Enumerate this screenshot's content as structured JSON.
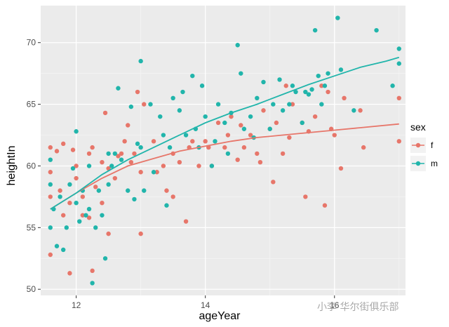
{
  "chart_data": {
    "type": "scatter",
    "title": "",
    "xlabel": "ageYear",
    "ylabel": "heightIn",
    "xlim": [
      11.45,
      17.1
    ],
    "ylim": [
      49.5,
      73.0
    ],
    "x_ticks": [
      12,
      14,
      16
    ],
    "x_tick_labels": [
      "12",
      "14",
      "16"
    ],
    "y_ticks": [
      50,
      55,
      60,
      65,
      70
    ],
    "y_tick_labels": [
      "50",
      "55",
      "60",
      "65",
      "70"
    ],
    "grid": true,
    "legend": {
      "title": "sex",
      "position": "right"
    },
    "series": [
      {
        "name": "f",
        "color": "#E7766A",
        "points": [
          [
            11.6,
            52.8
          ],
          [
            11.6,
            57.5
          ],
          [
            11.6,
            59.5
          ],
          [
            11.6,
            61.5
          ],
          [
            11.7,
            61.2
          ],
          [
            11.75,
            58.0
          ],
          [
            11.8,
            61.8
          ],
          [
            11.8,
            56.0
          ],
          [
            11.9,
            57.0
          ],
          [
            11.9,
            51.3
          ],
          [
            11.95,
            61.3
          ],
          [
            12.0,
            60.0
          ],
          [
            12.0,
            59.0
          ],
          [
            12.1,
            57.5
          ],
          [
            12.1,
            56.0
          ],
          [
            12.2,
            61.0
          ],
          [
            12.25,
            61.5
          ],
          [
            12.2,
            55.8
          ],
          [
            12.25,
            51.5
          ],
          [
            12.3,
            58.3
          ],
          [
            12.4,
            57.0
          ],
          [
            12.4,
            60.3
          ],
          [
            12.45,
            64.3
          ],
          [
            12.5,
            59.8
          ],
          [
            12.5,
            54.5
          ],
          [
            12.6,
            59.0
          ],
          [
            12.65,
            60.8
          ],
          [
            12.7,
            61.0
          ],
          [
            12.75,
            62.0
          ],
          [
            12.8,
            63.3
          ],
          [
            12.85,
            60.3
          ],
          [
            12.9,
            61.0
          ],
          [
            12.95,
            66.0
          ],
          [
            13.0,
            54.5
          ],
          [
            13.0,
            59.5
          ],
          [
            13.05,
            65.0
          ],
          [
            13.2,
            62.0
          ],
          [
            13.25,
            59.5
          ],
          [
            13.35,
            60.0
          ],
          [
            13.4,
            58.0
          ],
          [
            13.5,
            61.0
          ],
          [
            13.5,
            57.5
          ],
          [
            13.6,
            60.3
          ],
          [
            13.7,
            55.5
          ],
          [
            13.75,
            61.5
          ],
          [
            13.8,
            62.0
          ],
          [
            13.9,
            60.0
          ],
          [
            14.0,
            62.0
          ],
          [
            14.05,
            61.5
          ],
          [
            14.1,
            60.0
          ],
          [
            14.2,
            63.5
          ],
          [
            14.3,
            61.5
          ],
          [
            14.35,
            62.5
          ],
          [
            14.4,
            64.0
          ],
          [
            14.5,
            60.5
          ],
          [
            14.55,
            63.3
          ],
          [
            14.6,
            61.5
          ],
          [
            14.7,
            62.5
          ],
          [
            14.8,
            61.0
          ],
          [
            14.85,
            60.3
          ],
          [
            14.9,
            64.5
          ],
          [
            15.0,
            63.0
          ],
          [
            15.05,
            58.7
          ],
          [
            15.1,
            63.5
          ],
          [
            15.2,
            61.0
          ],
          [
            15.25,
            66.5
          ],
          [
            15.3,
            62.3
          ],
          [
            15.35,
            65.0
          ],
          [
            15.5,
            63.5
          ],
          [
            15.55,
            57.5
          ],
          [
            15.6,
            62.8
          ],
          [
            15.7,
            64.0
          ],
          [
            15.8,
            66.5
          ],
          [
            15.85,
            56.8
          ],
          [
            15.9,
            66.0
          ],
          [
            15.95,
            63.0
          ],
          [
            16.0,
            62.5
          ],
          [
            16.1,
            59.8
          ],
          [
            16.15,
            65.5
          ],
          [
            16.4,
            64.5
          ],
          [
            16.45,
            61.5
          ],
          [
            17.0,
            65.5
          ],
          [
            17.0,
            62.0
          ]
        ],
        "trend": [
          [
            11.6,
            56.5
          ],
          [
            12.0,
            57.8
          ],
          [
            12.4,
            59.0
          ],
          [
            12.8,
            60.0
          ],
          [
            13.2,
            60.6
          ],
          [
            13.6,
            61.2
          ],
          [
            14.0,
            61.6
          ],
          [
            14.4,
            62.0
          ],
          [
            14.8,
            62.3
          ],
          [
            15.2,
            62.5
          ],
          [
            15.6,
            62.7
          ],
          [
            16.0,
            62.9
          ],
          [
            16.4,
            63.1
          ],
          [
            17.0,
            63.4
          ]
        ]
      },
      {
        "name": "m",
        "color": "#21B5AB",
        "points": [
          [
            11.6,
            55.0
          ],
          [
            11.6,
            58.5
          ],
          [
            11.6,
            60.5
          ],
          [
            11.65,
            56.5
          ],
          [
            11.7,
            53.5
          ],
          [
            11.75,
            57.5
          ],
          [
            11.8,
            53.2
          ],
          [
            11.85,
            55.0
          ],
          [
            11.9,
            58.5
          ],
          [
            11.95,
            59.8
          ],
          [
            12.0,
            62.8
          ],
          [
            12.0,
            57.0
          ],
          [
            12.05,
            55.5
          ],
          [
            12.1,
            58.0
          ],
          [
            12.15,
            56.0
          ],
          [
            12.2,
            56.5
          ],
          [
            12.2,
            60.0
          ],
          [
            12.25,
            50.5
          ],
          [
            12.3,
            55.0
          ],
          [
            12.35,
            58.0
          ],
          [
            12.4,
            56.0
          ],
          [
            12.45,
            52.5
          ],
          [
            12.5,
            58.5
          ],
          [
            12.5,
            61.0
          ],
          [
            12.55,
            60.0
          ],
          [
            12.6,
            61.0
          ],
          [
            12.65,
            66.3
          ],
          [
            12.7,
            60.5
          ],
          [
            12.8,
            58.0
          ],
          [
            12.85,
            64.8
          ],
          [
            12.9,
            57.3
          ],
          [
            12.95,
            61.8
          ],
          [
            13.0,
            68.5
          ],
          [
            13.0,
            61.5
          ],
          [
            13.05,
            58.0
          ],
          [
            13.15,
            65.0
          ],
          [
            13.2,
            59.5
          ],
          [
            13.3,
            64.0
          ],
          [
            13.35,
            62.5
          ],
          [
            13.4,
            56.8
          ],
          [
            13.45,
            61.5
          ],
          [
            13.5,
            65.5
          ],
          [
            13.6,
            64.5
          ],
          [
            13.65,
            66.0
          ],
          [
            13.7,
            62.5
          ],
          [
            13.8,
            67.3
          ],
          [
            13.85,
            63.0
          ],
          [
            13.9,
            61.5
          ],
          [
            13.95,
            66.5
          ],
          [
            14.0,
            64.0
          ],
          [
            14.1,
            60.0
          ],
          [
            14.15,
            62.0
          ],
          [
            14.2,
            65.0
          ],
          [
            14.3,
            63.5
          ],
          [
            14.35,
            61.0
          ],
          [
            14.4,
            64.3
          ],
          [
            14.5,
            69.8
          ],
          [
            14.55,
            67.5
          ],
          [
            14.6,
            63.0
          ],
          [
            14.7,
            64.0
          ],
          [
            14.75,
            62.3
          ],
          [
            14.8,
            65.5
          ],
          [
            14.9,
            66.8
          ],
          [
            15.0,
            63.0
          ],
          [
            15.05,
            65.0
          ],
          [
            15.15,
            67.0
          ],
          [
            15.2,
            64.5
          ],
          [
            15.3,
            65.0
          ],
          [
            15.35,
            66.5
          ],
          [
            15.4,
            66.0
          ],
          [
            15.5,
            63.5
          ],
          [
            15.55,
            66.0
          ],
          [
            15.6,
            65.8
          ],
          [
            15.65,
            66.2
          ],
          [
            15.7,
            71.0
          ],
          [
            15.75,
            67.3
          ],
          [
            15.8,
            65.0
          ],
          [
            15.85,
            66.5
          ],
          [
            15.9,
            67.5
          ],
          [
            16.05,
            72.0
          ],
          [
            16.1,
            67.8
          ],
          [
            16.3,
            64.5
          ],
          [
            16.65,
            71.0
          ],
          [
            16.9,
            66.5
          ],
          [
            17.0,
            69.5
          ],
          [
            17.0,
            68.3
          ]
        ],
        "trend": [
          [
            11.6,
            56.5
          ],
          [
            12.0,
            57.8
          ],
          [
            12.4,
            59.3
          ],
          [
            12.8,
            60.5
          ],
          [
            13.2,
            61.5
          ],
          [
            13.6,
            62.5
          ],
          [
            14.0,
            63.5
          ],
          [
            14.4,
            64.3
          ],
          [
            14.8,
            65.0
          ],
          [
            15.2,
            65.8
          ],
          [
            15.6,
            66.6
          ],
          [
            16.0,
            67.3
          ],
          [
            16.4,
            68.0
          ],
          [
            16.8,
            68.5
          ],
          [
            17.0,
            68.8
          ]
        ]
      }
    ]
  },
  "watermark": "小李 华尔街俱乐部"
}
